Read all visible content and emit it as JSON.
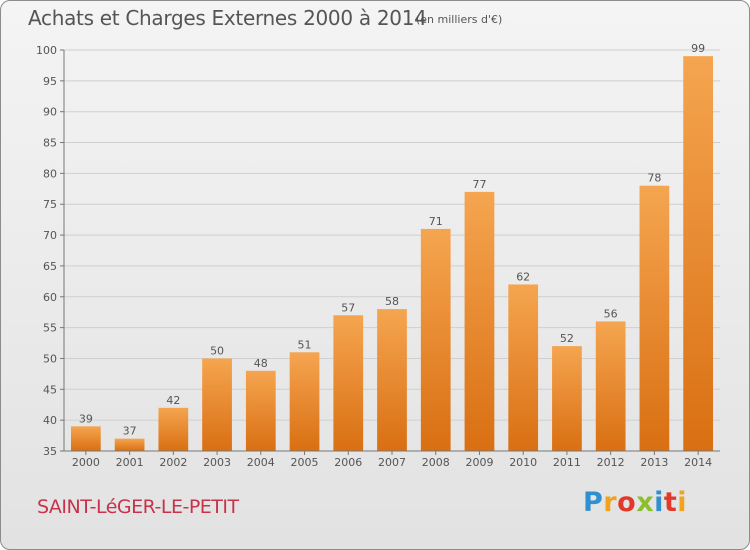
{
  "header": {
    "title": "Achats et Charges Externes 2000 à 2014",
    "subtitle": "(en milliers d'€)"
  },
  "footer": {
    "commune": "SAINT-LéGER-LE-PETIT",
    "logo_letters": [
      "P",
      "r",
      "o",
      "x",
      "i",
      "t",
      "i"
    ]
  },
  "colors": {
    "bar_light": "#f5a550",
    "bar_dark": "#d96f12",
    "grid": "#cfcfcf",
    "axis": "#777777",
    "text": "#555555"
  },
  "chart_data": {
    "type": "bar",
    "title": "Achats et Charges Externes 2000 à 2014",
    "subtitle": "(en milliers d'€)",
    "categories": [
      "2000",
      "2001",
      "2002",
      "2003",
      "2004",
      "2005",
      "2006",
      "2007",
      "2008",
      "2009",
      "2010",
      "2011",
      "2012",
      "2013",
      "2014"
    ],
    "values": [
      39,
      37,
      42,
      50,
      48,
      51,
      57,
      58,
      71,
      77,
      62,
      52,
      56,
      78,
      99
    ],
    "ylim": [
      35,
      100
    ],
    "yticks": [
      35,
      40,
      45,
      50,
      55,
      60,
      65,
      70,
      75,
      80,
      85,
      90,
      95,
      100
    ],
    "grid": true,
    "data_labels": true
  }
}
